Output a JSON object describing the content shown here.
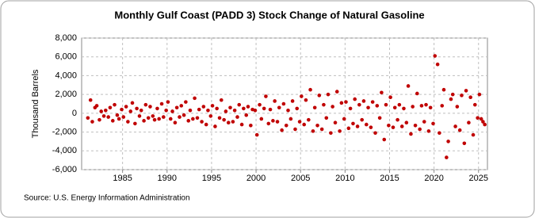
{
  "chart_data": {
    "type": "scatter",
    "title": "Monthly Gulf Coast (PADD 3) Stock Change of Natural Gasoline",
    "y_label": "Thousand Barrels",
    "source": "Source: U.S. Energy Information Administration",
    "color": "#c00000",
    "grid": true,
    "xlim": [
      1980.4,
      2026
    ],
    "ylim": [
      -6000,
      8000
    ],
    "xticks": [
      1985,
      1990,
      1995,
      2000,
      2005,
      2010,
      2015,
      2020,
      2025
    ],
    "yticks": [
      {
        "value": 8000,
        "label": "8,000"
      },
      {
        "value": 6000,
        "label": "6,000"
      },
      {
        "value": 4000,
        "label": "4,000"
      },
      {
        "value": 2000,
        "label": "2,000"
      },
      0,
      {
        "value": -2000,
        "label": "-2,000"
      },
      {
        "value": -4000,
        "label": "-4,000"
      },
      {
        "value": -6000,
        "label": "-6,000"
      }
    ],
    "x": [
      1981.1,
      1981.4,
      1981.6,
      1981.9,
      1982.1,
      1982.4,
      1982.6,
      1982.9,
      1983.1,
      1983.4,
      1983.6,
      1983.9,
      1984.1,
      1984.4,
      1984.6,
      1984.9,
      1985.1,
      1985.4,
      1985.6,
      1985.9,
      1986.1,
      1986.4,
      1986.6,
      1986.9,
      1987.1,
      1987.4,
      1987.6,
      1987.9,
      1988.1,
      1988.4,
      1988.6,
      1988.9,
      1989.1,
      1989.4,
      1989.6,
      1989.9,
      1990.1,
      1990.4,
      1990.6,
      1990.9,
      1991.1,
      1991.4,
      1991.6,
      1991.9,
      1992.1,
      1992.4,
      1992.6,
      1992.9,
      1993.1,
      1993.4,
      1993.6,
      1993.9,
      1994.1,
      1994.4,
      1994.6,
      1994.9,
      1995.1,
      1995.4,
      1995.6,
      1995.9,
      1996.1,
      1996.4,
      1996.6,
      1996.9,
      1997.1,
      1997.4,
      1997.6,
      1997.9,
      1998.1,
      1998.4,
      1998.6,
      1998.9,
      1999.1,
      1999.4,
      1999.6,
      1999.9,
      2000.1,
      2000.4,
      2000.6,
      2000.9,
      2001.1,
      2001.4,
      2001.6,
      2001.9,
      2002.1,
      2002.4,
      2002.6,
      2002.9,
      2003.1,
      2003.4,
      2003.6,
      2003.9,
      2004.1,
      2004.4,
      2004.6,
      2004.9,
      2005.1,
      2005.4,
      2005.6,
      2005.9,
      2006.1,
      2006.4,
      2006.6,
      2006.9,
      2007.1,
      2007.4,
      2007.6,
      2007.9,
      2008.1,
      2008.4,
      2008.6,
      2008.9,
      2009.1,
      2009.4,
      2009.6,
      2009.9,
      2010.1,
      2010.4,
      2010.6,
      2010.9,
      2011.1,
      2011.4,
      2011.6,
      2011.9,
      2012.1,
      2012.4,
      2012.6,
      2012.9,
      2013.1,
      2013.4,
      2013.6,
      2013.9,
      2014.1,
      2014.4,
      2014.6,
      2014.9,
      2015.1,
      2015.4,
      2015.6,
      2015.9,
      2016.1,
      2016.4,
      2016.6,
      2016.9,
      2017.1,
      2017.4,
      2017.6,
      2017.9,
      2018.1,
      2018.4,
      2018.6,
      2018.9,
      2019.1,
      2019.4,
      2019.6,
      2019.9,
      2020.1,
      2020.4,
      2020.6,
      2020.9,
      2021.1,
      2021.4,
      2021.6,
      2021.9,
      2022.1,
      2022.4,
      2022.6,
      2022.9,
      2023.1,
      2023.4,
      2023.6,
      2023.9,
      2024.1,
      2024.4,
      2024.6,
      2024.9,
      2025.1,
      2025.3,
      2025.5,
      2025.7
    ],
    "values": [
      -500,
      1400,
      -900,
      600,
      800,
      -700,
      200,
      -300,
      300,
      -400,
      600,
      -800,
      900,
      -200,
      -600,
      400,
      -400,
      700,
      -900,
      200,
      1100,
      -1100,
      500,
      -300,
      300,
      -800,
      900,
      -500,
      700,
      -300,
      -700,
      500,
      -600,
      1000,
      -400,
      300,
      1200,
      -600,
      200,
      -1000,
      600,
      -400,
      800,
      -200,
      1200,
      -800,
      300,
      -600,
      1600,
      -500,
      400,
      -900,
      700,
      -1200,
      300,
      -300,
      800,
      -1400,
      500,
      -500,
      1400,
      -700,
      200,
      -1000,
      600,
      -900,
      300,
      -400,
      900,
      -1200,
      500,
      -200,
      700,
      -1300,
      400,
      300,
      -2300,
      900,
      -600,
      500,
      1800,
      -1100,
      400,
      -800,
      1300,
      -900,
      600,
      -1800,
      1000,
      -1300,
      300,
      -600,
      1300,
      -1700,
      500,
      -900,
      1800,
      -1200,
      1400,
      -700,
      2500,
      -1900,
      600,
      -1300,
      1900,
      -1700,
      900,
      -500,
      2000,
      -2100,
      700,
      -1000,
      2300,
      -1900,
      1100,
      -600,
      1200,
      -1600,
      500,
      -1100,
      1500,
      -1400,
      900,
      -700,
      1300,
      -1200,
      600,
      -1500,
      1200,
      -2100,
      800,
      -500,
      2200,
      -2800,
      900,
      -1300,
      1700,
      -1500,
      600,
      -700,
      900,
      -1400,
      500,
      -1000,
      2900,
      -2200,
      700,
      -1300,
      2100,
      -1700,
      800,
      -900,
      900,
      -1900,
      600,
      -1100,
      6100,
      5200,
      -2100,
      800,
      2500,
      -4700,
      -3000,
      1500,
      2000,
      -1400,
      700,
      -1800,
      1900,
      -3200,
      2400,
      -1000,
      1700,
      -2300,
      900,
      -500,
      2000,
      -600,
      -900,
      -1200
    ]
  }
}
